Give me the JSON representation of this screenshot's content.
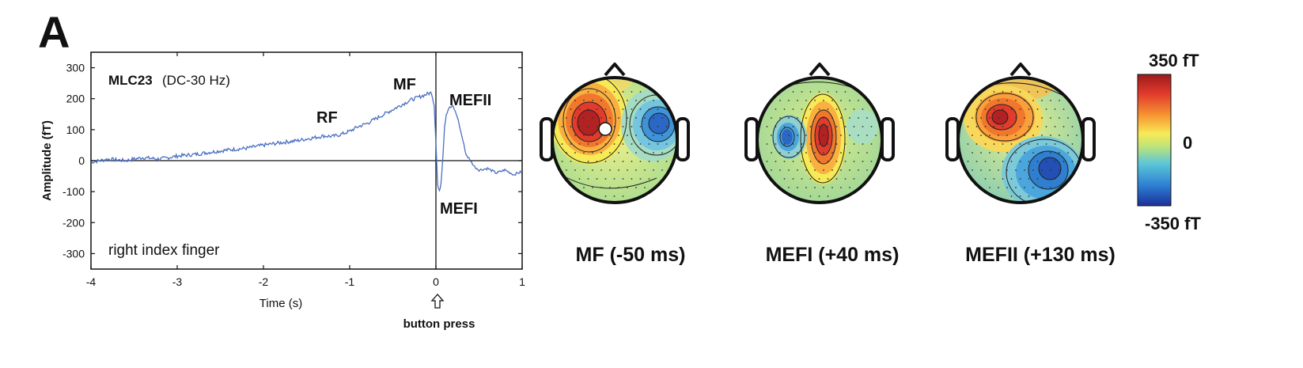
{
  "figure": {
    "panel_label": "A",
    "trace": {
      "channel": "MLC23",
      "filter": "(DC-30 Hz)",
      "condition": "right index finger",
      "marker_label": "button press",
      "peak_labels": {
        "rf": "RF",
        "mf": "MF",
        "mefi": "MEFI",
        "mefii": "MEFII"
      }
    },
    "topomaps": [
      {
        "title": "MF (-50 ms)"
      },
      {
        "title": "MEFI (+40 ms)"
      },
      {
        "title": "MEFII (+130 ms)"
      }
    ],
    "colorbar": {
      "max_label": "350 fT",
      "mid_label": "0",
      "min_label": "-350 fT"
    }
  },
  "chart_data": {
    "type": "line",
    "title": "",
    "xlabel": "Time (s)",
    "ylabel": "Amplitude (fT)",
    "xlim": [
      -4,
      1
    ],
    "ylim": [
      -350,
      350
    ],
    "x_ticks": [
      -4,
      -3,
      -2,
      -1,
      0,
      1
    ],
    "y_ticks": [
      -300,
      -200,
      -100,
      0,
      100,
      200,
      300
    ],
    "x_tick_labels": [
      "-4",
      "-3",
      "-2",
      "-1",
      "0",
      "1"
    ],
    "y_tick_labels": [
      "-300",
      "-200",
      "-100",
      "0",
      "100",
      "200",
      "300"
    ],
    "grid": false,
    "line_color": "#4a6fc0",
    "series": [
      {
        "x": [
          -4.0,
          -3.8,
          -3.6,
          -3.4,
          -3.2,
          -3.0,
          -2.8,
          -2.6,
          -2.4,
          -2.2,
          -2.0,
          -1.8,
          -1.6,
          -1.4,
          -1.3,
          -1.2,
          -1.1,
          -1.0,
          -0.9,
          -0.8,
          -0.7,
          -0.6,
          -0.5,
          -0.4,
          -0.3,
          -0.2,
          -0.1,
          -0.05,
          -0.02,
          0.0,
          0.02,
          0.04,
          0.06,
          0.08,
          0.1,
          0.12,
          0.15,
          0.2,
          0.25,
          0.3,
          0.35,
          0.4,
          0.45,
          0.5,
          0.6,
          0.7,
          0.8,
          0.9,
          1.0
        ],
        "y": [
          -5,
          5,
          0,
          10,
          5,
          15,
          20,
          28,
          35,
          40,
          50,
          58,
          65,
          75,
          80,
          78,
          85,
          95,
          110,
          120,
          135,
          150,
          165,
          180,
          195,
          205,
          215,
          220,
          180,
          60,
          -80,
          -100,
          -70,
          10,
          110,
          150,
          170,
          175,
          140,
          80,
          20,
          0,
          -20,
          -30,
          -25,
          -40,
          -30,
          -45,
          -35
        ]
      }
    ]
  }
}
